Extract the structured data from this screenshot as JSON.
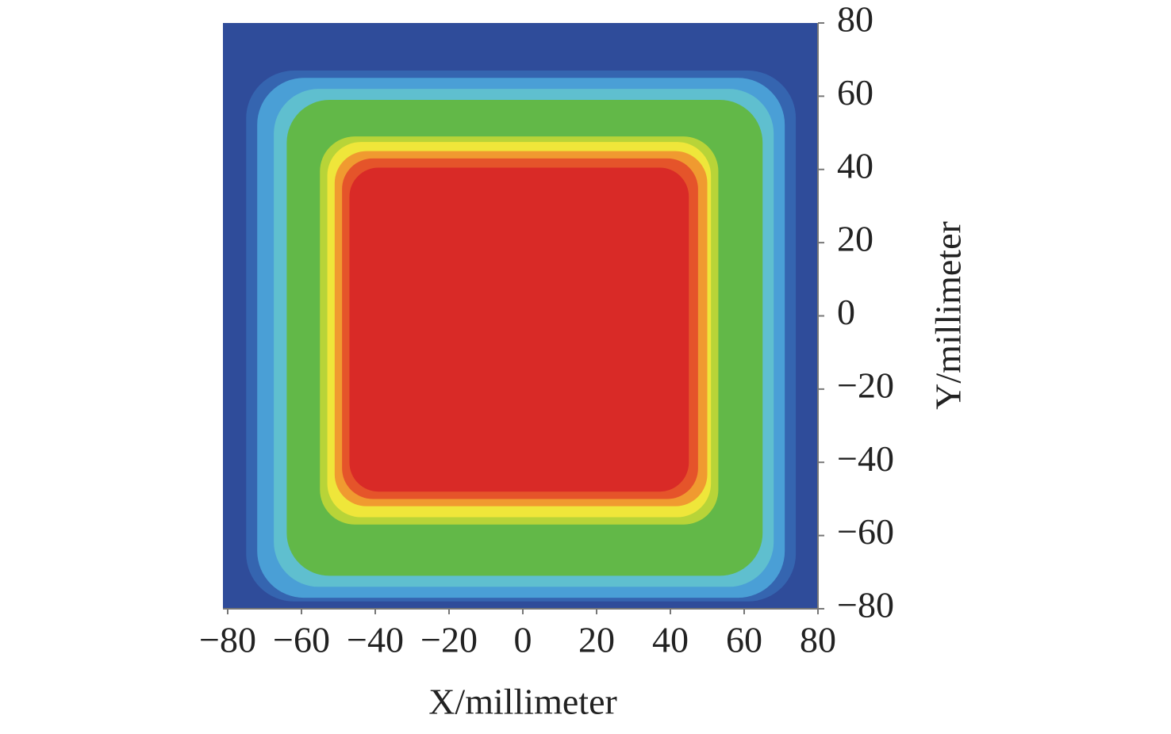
{
  "chart_data": {
    "type": "contour",
    "xlabel": "X/millimeter",
    "ylabel": "Y/millimeter",
    "xlim": [
      -80,
      80
    ],
    "ylim": [
      -80,
      80
    ],
    "xticks": [
      {
        "value": -80,
        "label": "−80"
      },
      {
        "value": -60,
        "label": "−60"
      },
      {
        "value": -40,
        "label": "−40"
      },
      {
        "value": -20,
        "label": "−20"
      },
      0,
      20,
      40,
      60,
      80
    ],
    "yticks": [
      {
        "value": -80,
        "label": "−80"
      },
      {
        "value": -60,
        "label": "−60"
      },
      {
        "value": -40,
        "label": "−40"
      },
      {
        "value": -20,
        "label": "−20"
      },
      0,
      20,
      40,
      60,
      80
    ],
    "background": "#2f4c9a",
    "contours": [
      {
        "color": "#3565b0",
        "x": [
          -75,
          74
        ],
        "y": [
          -78,
          67
        ]
      },
      {
        "color": "#4a9fd6",
        "x": [
          -72,
          71
        ],
        "y": [
          -77,
          65
        ]
      },
      {
        "color": "#5fbfcf",
        "x": [
          -67.5,
          68
        ],
        "y": [
          -74,
          62
        ]
      },
      {
        "color": "#62b848",
        "x": [
          -64,
          65
        ],
        "y": [
          -71,
          59
        ]
      },
      {
        "color": "#b8d438",
        "x": [
          -55,
          53
        ],
        "y": [
          -57,
          49
        ]
      },
      {
        "color": "#efe63a",
        "x": [
          -53,
          51
        ],
        "y": [
          -55,
          47.5
        ]
      },
      {
        "color": "#f09a30",
        "x": [
          -51,
          50
        ],
        "y": [
          -52,
          45
        ]
      },
      {
        "color": "#e5542a",
        "x": [
          -49,
          47.5
        ],
        "y": [
          -50,
          43
        ]
      },
      {
        "color": "#d92a27",
        "x": [
          -47,
          45
        ],
        "y": [
          -48,
          40.5
        ]
      }
    ]
  }
}
